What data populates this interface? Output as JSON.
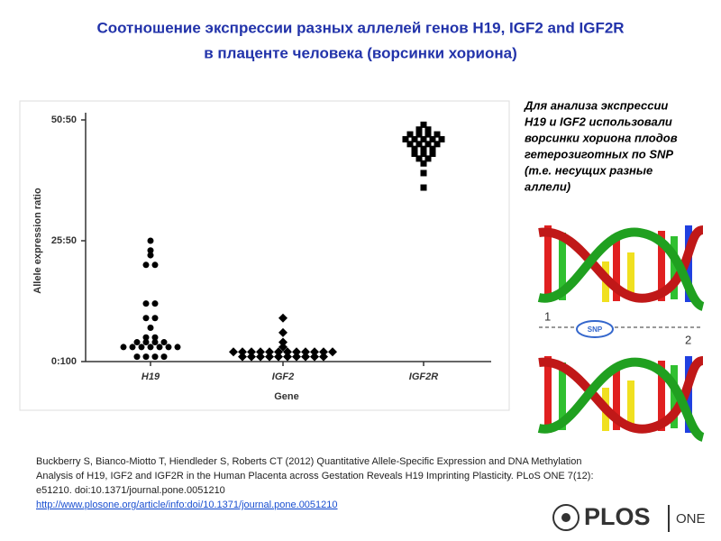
{
  "slide": {
    "title": [
      "Соотношение экспрессии разных аллелей генов H19, IGF2 and IGF2R",
      "в плаценте человека (ворсинки хориона)"
    ],
    "note": [
      "Для анализа экспрессии",
      "H19 и IGF2 использовали",
      "ворсинки хориона плодов",
      "гетерозиготных по SNP",
      "(т.е. несущих разные",
      "аллели)"
    ],
    "dna_labels": {
      "strand1": "1",
      "strand2": "2",
      "snp": "SNP"
    },
    "citation": [
      "Buckberry S, Bianco-Miotto T, Hiendleder S, Roberts CT (2012) Quantitative Allele-Specific Expression and DNA Methylation",
      "Analysis of H19, IGF2 and IGF2R in the Human Placenta across Gestation Reveals H19 Imprinting Plasticity. PLoS ONE 7(12):",
      "e51210. doi:10.1371/journal.pone.0051210"
    ],
    "link": "http://www.plosone.org/article/info:doi/10.1371/journal.pone.0051210",
    "logo": {
      "brand": "PLOS",
      "journal": "ONE"
    }
  },
  "chart_data": {
    "type": "strip",
    "x_label": "Gene",
    "y_label": "Allele expression ratio",
    "categories": [
      "H19",
      "IGF2",
      "IGF2R"
    ],
    "ylim": [
      0,
      52
    ],
    "yticks": [
      {
        "value": 0,
        "label": "0:100"
      },
      {
        "value": 25,
        "label": "25:50"
      },
      {
        "value": 50,
        "label": "50:50"
      }
    ],
    "series": [
      {
        "marker": "circle",
        "color": "#000000",
        "values": [
          25,
          23,
          22,
          20,
          20,
          12,
          12,
          9,
          9,
          7,
          5,
          5,
          4,
          4,
          4,
          4,
          3,
          3,
          3,
          3,
          3,
          3,
          3,
          1,
          1,
          1,
          1
        ]
      },
      {
        "marker": "diamond",
        "color": "#000000",
        "values": [
          9,
          6,
          4,
          3,
          2,
          2,
          2,
          2,
          2,
          2,
          2,
          2,
          2,
          2,
          2,
          2,
          1,
          1,
          1,
          1,
          1,
          1,
          1,
          1,
          1,
          1
        ]
      },
      {
        "marker": "square",
        "color": "#000000",
        "values": [
          49,
          48,
          48,
          47,
          47,
          47,
          47,
          46,
          46,
          46,
          46,
          46,
          45,
          45,
          45,
          45,
          44,
          44,
          44,
          43,
          43,
          43,
          42,
          42,
          41,
          39,
          36
        ]
      }
    ]
  }
}
